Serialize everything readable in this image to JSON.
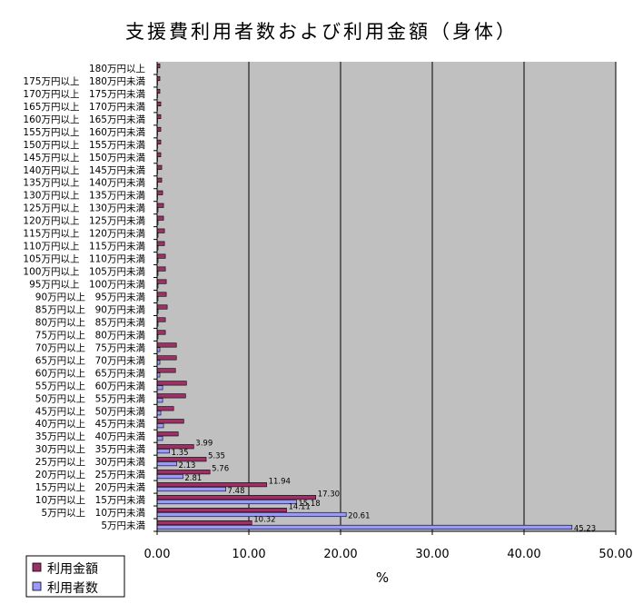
{
  "chart_data": {
    "type": "bar",
    "orientation": "horizontal",
    "title": "支援費利用者数および利用金額（身体）",
    "xlabel": "%",
    "ylabel": "",
    "xlim": [
      0,
      50
    ],
    "x_ticks": [
      "0.00",
      "10.00",
      "20.00",
      "30.00",
      "40.00",
      "50.00"
    ],
    "grid": "vertical",
    "legend_position": "bottom-left",
    "plot_background": "#c0c0c0",
    "categories": [
      "5万円未満",
      "5万円以上　10万円未満",
      "10万円以上　15万円未満",
      "15万円以上　20万円未満",
      "20万円以上　25万円未満",
      "25万円以上　30万円未満",
      "30万円以上　35万円未満",
      "35万円以上　40万円未満",
      "40万円以上　45万円未満",
      "45万円以上　50万円未満",
      "50万円以上　55万円未満",
      "55万円以上　60万円未満",
      "60万円以上　65万円未満",
      "65万円以上　70万円未満",
      "70万円以上　75万円未満",
      "75万円以上　80万円未満",
      "80万円以上　85万円未満",
      "85万円以上　90万円未満",
      "90万円以上　95万円未満",
      "95万円以上　100万円未満",
      "100万円以上　105万円未満",
      "105万円以上　110万円未満",
      "110万円以上　115万円未満",
      "115万円以上　120万円未満",
      "120万円以上　125万円未満",
      "125万円以上　130万円未満",
      "130万円以上　135万円未満",
      "135万円以上　140万円未満",
      "140万円以上　145万円未満",
      "145万円以上　150万円未満",
      "150万円以上　155万円未満",
      "155万円以上　160万円未満",
      "160万円以上　165万円未満",
      "165万円以上　170万円未満",
      "170万円以上　175万円未満",
      "175万円以上　180万円未満",
      "180万円以上"
    ],
    "series": [
      {
        "name": "利用金額",
        "color": "#993366",
        "values": [
          10.32,
          14.11,
          17.3,
          11.94,
          5.76,
          5.35,
          3.99,
          2.3,
          2.9,
          1.8,
          3.1,
          3.2,
          2.0,
          2.1,
          2.1,
          0.9,
          0.9,
          1.1,
          1.0,
          1.0,
          0.9,
          0.9,
          0.8,
          0.8,
          0.7,
          0.7,
          0.6,
          0.5,
          0.5,
          0.4,
          0.4,
          0.4,
          0.4,
          0.4,
          0.3,
          0.3,
          0.3
        ],
        "labels": [
          "10.32",
          "14.11",
          "17.30",
          "11.94",
          "5.76",
          "5.35",
          "3.99",
          "",
          "",
          "",
          "",
          "",
          "",
          "",
          "",
          "",
          "",
          "",
          "",
          "",
          "",
          "",
          "",
          "",
          "",
          "",
          "",
          "",
          "",
          "",
          "",
          "",
          "",
          "",
          "",
          "",
          ""
        ]
      },
      {
        "name": "利用者数",
        "color": "#9999ff",
        "values": [
          45.23,
          20.61,
          15.18,
          7.48,
          2.81,
          2.13,
          1.35,
          0.6,
          0.7,
          0.4,
          0.6,
          0.6,
          0.3,
          0.3,
          0.3,
          0.1,
          0.1,
          0.1,
          0.1,
          0.1,
          0.1,
          0.1,
          0.1,
          0.1,
          0.1,
          0.1,
          0.05,
          0.05,
          0.05,
          0.05,
          0.05,
          0.05,
          0.05,
          0.05,
          0.05,
          0.05,
          0.05
        ],
        "labels": [
          "45.23",
          "20.61",
          "15.18",
          "7.48",
          "2.81",
          "2.13",
          "1.35",
          "",
          "",
          "",
          "",
          "",
          "",
          "",
          "",
          "",
          "",
          "",
          "",
          "",
          "",
          "",
          "",
          "",
          "",
          "",
          "",
          "",
          "",
          "",
          "",
          "",
          "",
          "",
          "",
          "",
          ""
        ]
      }
    ]
  }
}
